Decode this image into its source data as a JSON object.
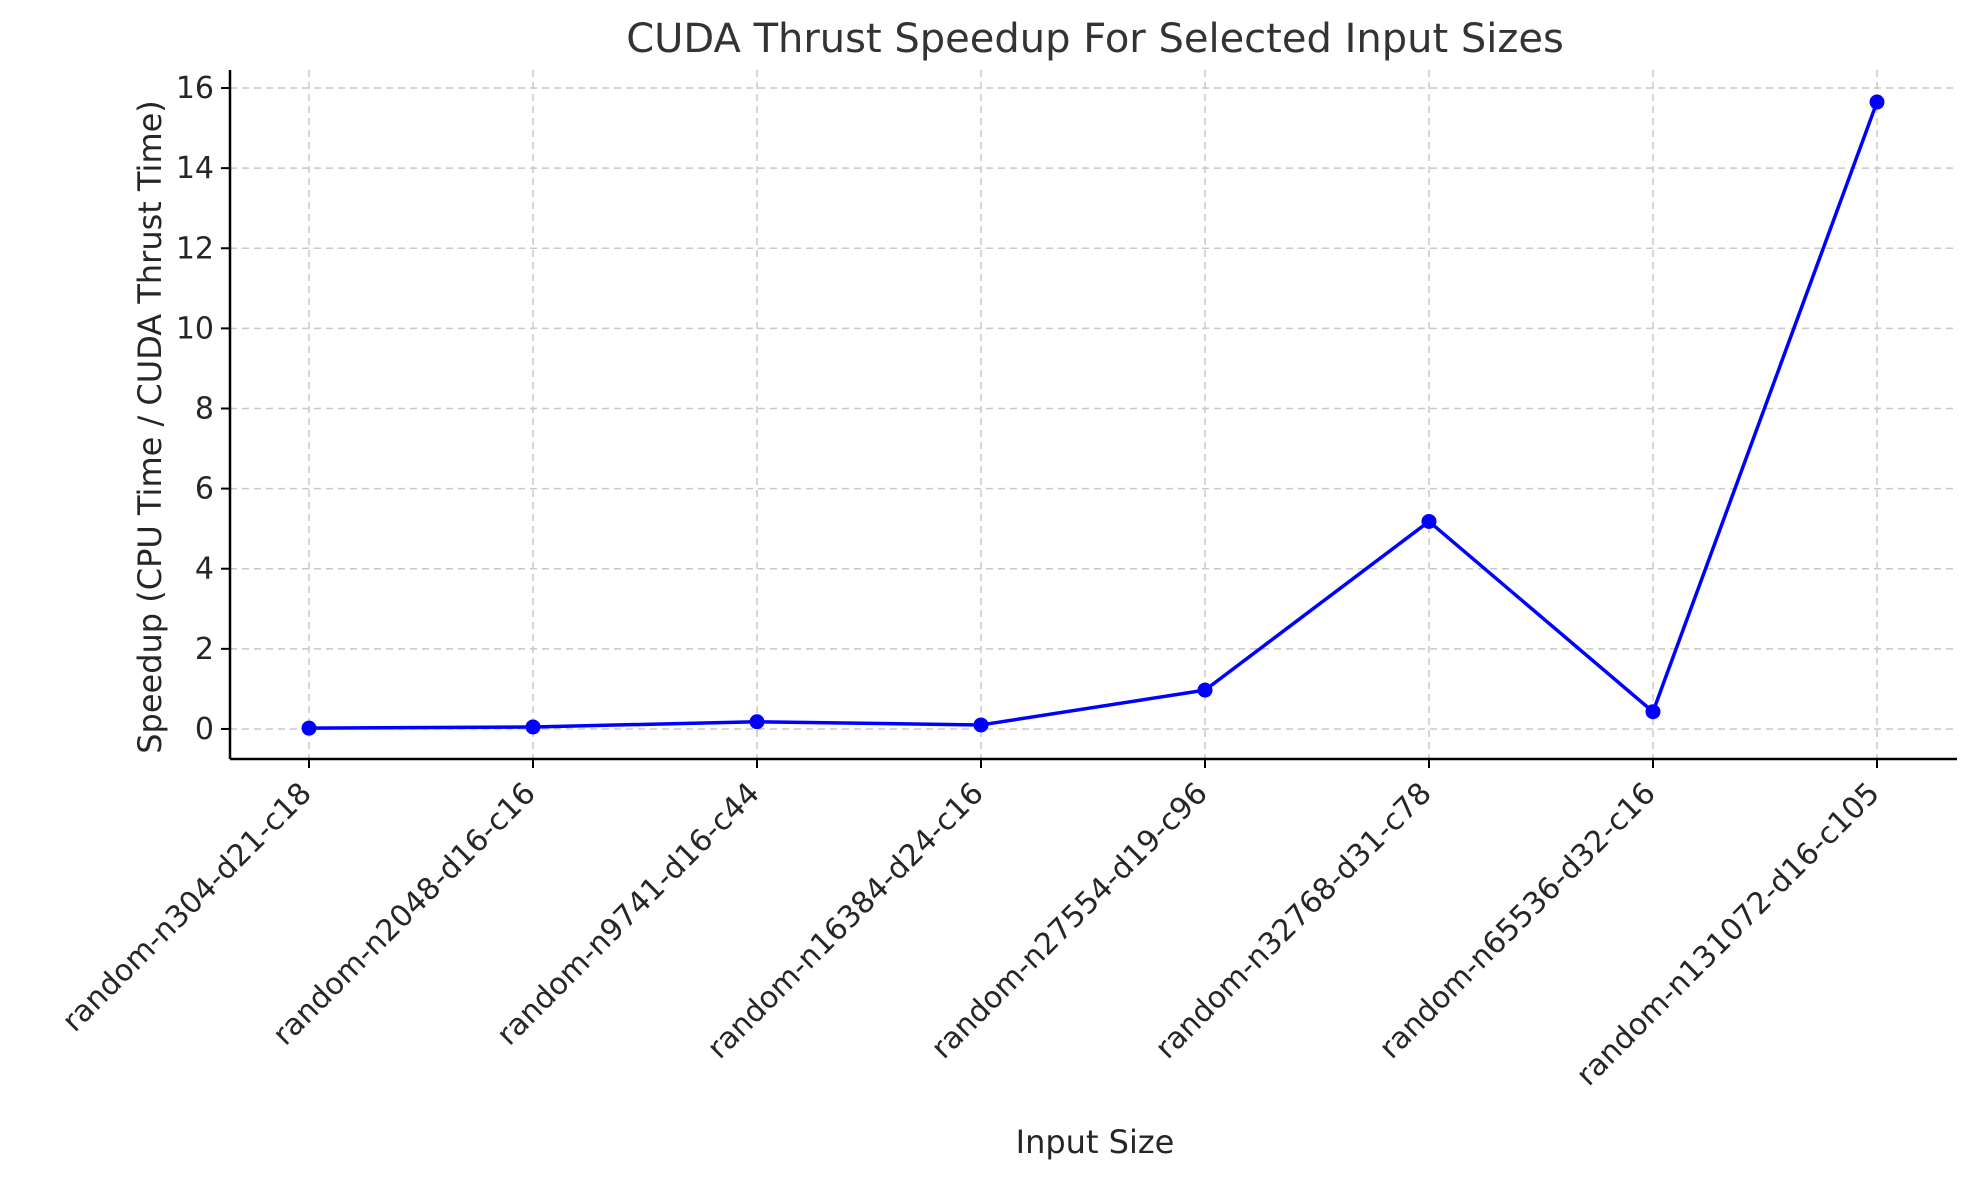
{
  "chart_data": {
    "type": "line",
    "title": "CUDA Thrust Speedup For Selected Input Sizes",
    "xlabel": "Input Size",
    "ylabel": "Speedup (CPU Time / CUDA Thrust Time)",
    "categories": [
      "random-n304-d21-c18",
      "random-n2048-d16-c16",
      "random-n9741-d16-c44",
      "random-n16384-d24-c16",
      "random-n27554-d19-c96",
      "random-n32768-d31-c78",
      "random-n65536-d32-c16",
      "random-n131072-d16-c105"
    ],
    "series": [
      {
        "values": [
          0.02,
          0.05,
          0.18,
          0.1,
          0.97,
          5.18,
          0.43,
          15.65
        ],
        "color": "#0000ff",
        "marker": "circle"
      }
    ],
    "ylim": [
      -0.75,
      16.45
    ],
    "yticks": [
      0,
      2,
      4,
      6,
      8,
      10,
      12,
      14,
      16
    ],
    "grid": true,
    "legend": "none"
  }
}
